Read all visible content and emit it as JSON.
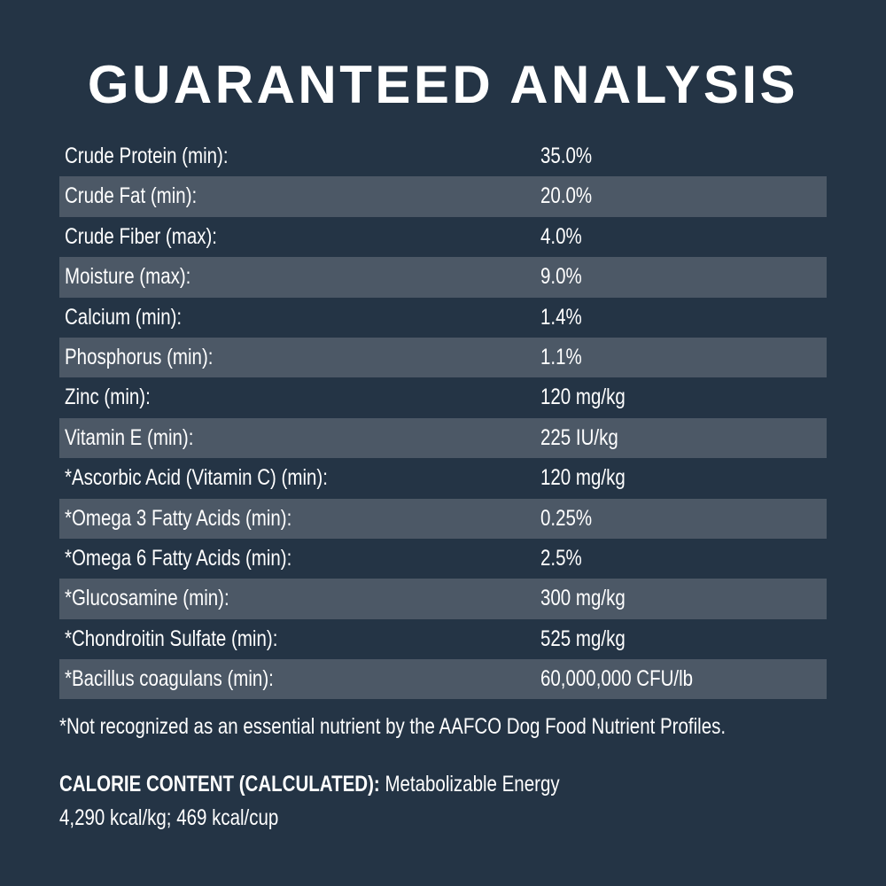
{
  "title": "GUARANTEED ANALYSIS",
  "rows": [
    {
      "label": "Crude Protein (min):",
      "value": "35.0%"
    },
    {
      "label": "Crude Fat (min):",
      "value": "20.0%"
    },
    {
      "label": "Crude Fiber (max):",
      "value": "4.0%"
    },
    {
      "label": "Moisture (max):",
      "value": "9.0%"
    },
    {
      "label": "Calcium (min):",
      "value": "1.4%"
    },
    {
      "label": "Phosphorus (min):",
      "value": "1.1%"
    },
    {
      "label": "Zinc (min):",
      "value": "120 mg/kg"
    },
    {
      "label": "Vitamin E (min):",
      "value": "225 IU/kg"
    },
    {
      "label": "*Ascorbic Acid (Vitamin C) (min):",
      "value": "120 mg/kg"
    },
    {
      "label": "*Omega 3 Fatty Acids (min):",
      "value": "0.25%"
    },
    {
      "label": "*Omega 6 Fatty Acids (min):",
      "value": "2.5%"
    },
    {
      "label": "*Glucosamine (min):",
      "value": "300 mg/kg"
    },
    {
      "label": "*Chondroitin Sulfate (min):",
      "value": "525 mg/kg"
    },
    {
      "label": "*Bacillus coagulans (min):",
      "value": "60,000,000 CFU/lb"
    }
  ],
  "footnote": "*Not recognized as an essential nutrient by the AAFCO Dog Food Nutrient Profiles.",
  "calorie": {
    "heading": "CALORIE CONTENT (CALCULATED):",
    "text": "Metabolizable Energy",
    "values": "4,290 kcal/kg; 469 kcal/cup"
  },
  "colors": {
    "background": "#243445",
    "stripe": "#4c5866",
    "text": "#ffffff"
  }
}
